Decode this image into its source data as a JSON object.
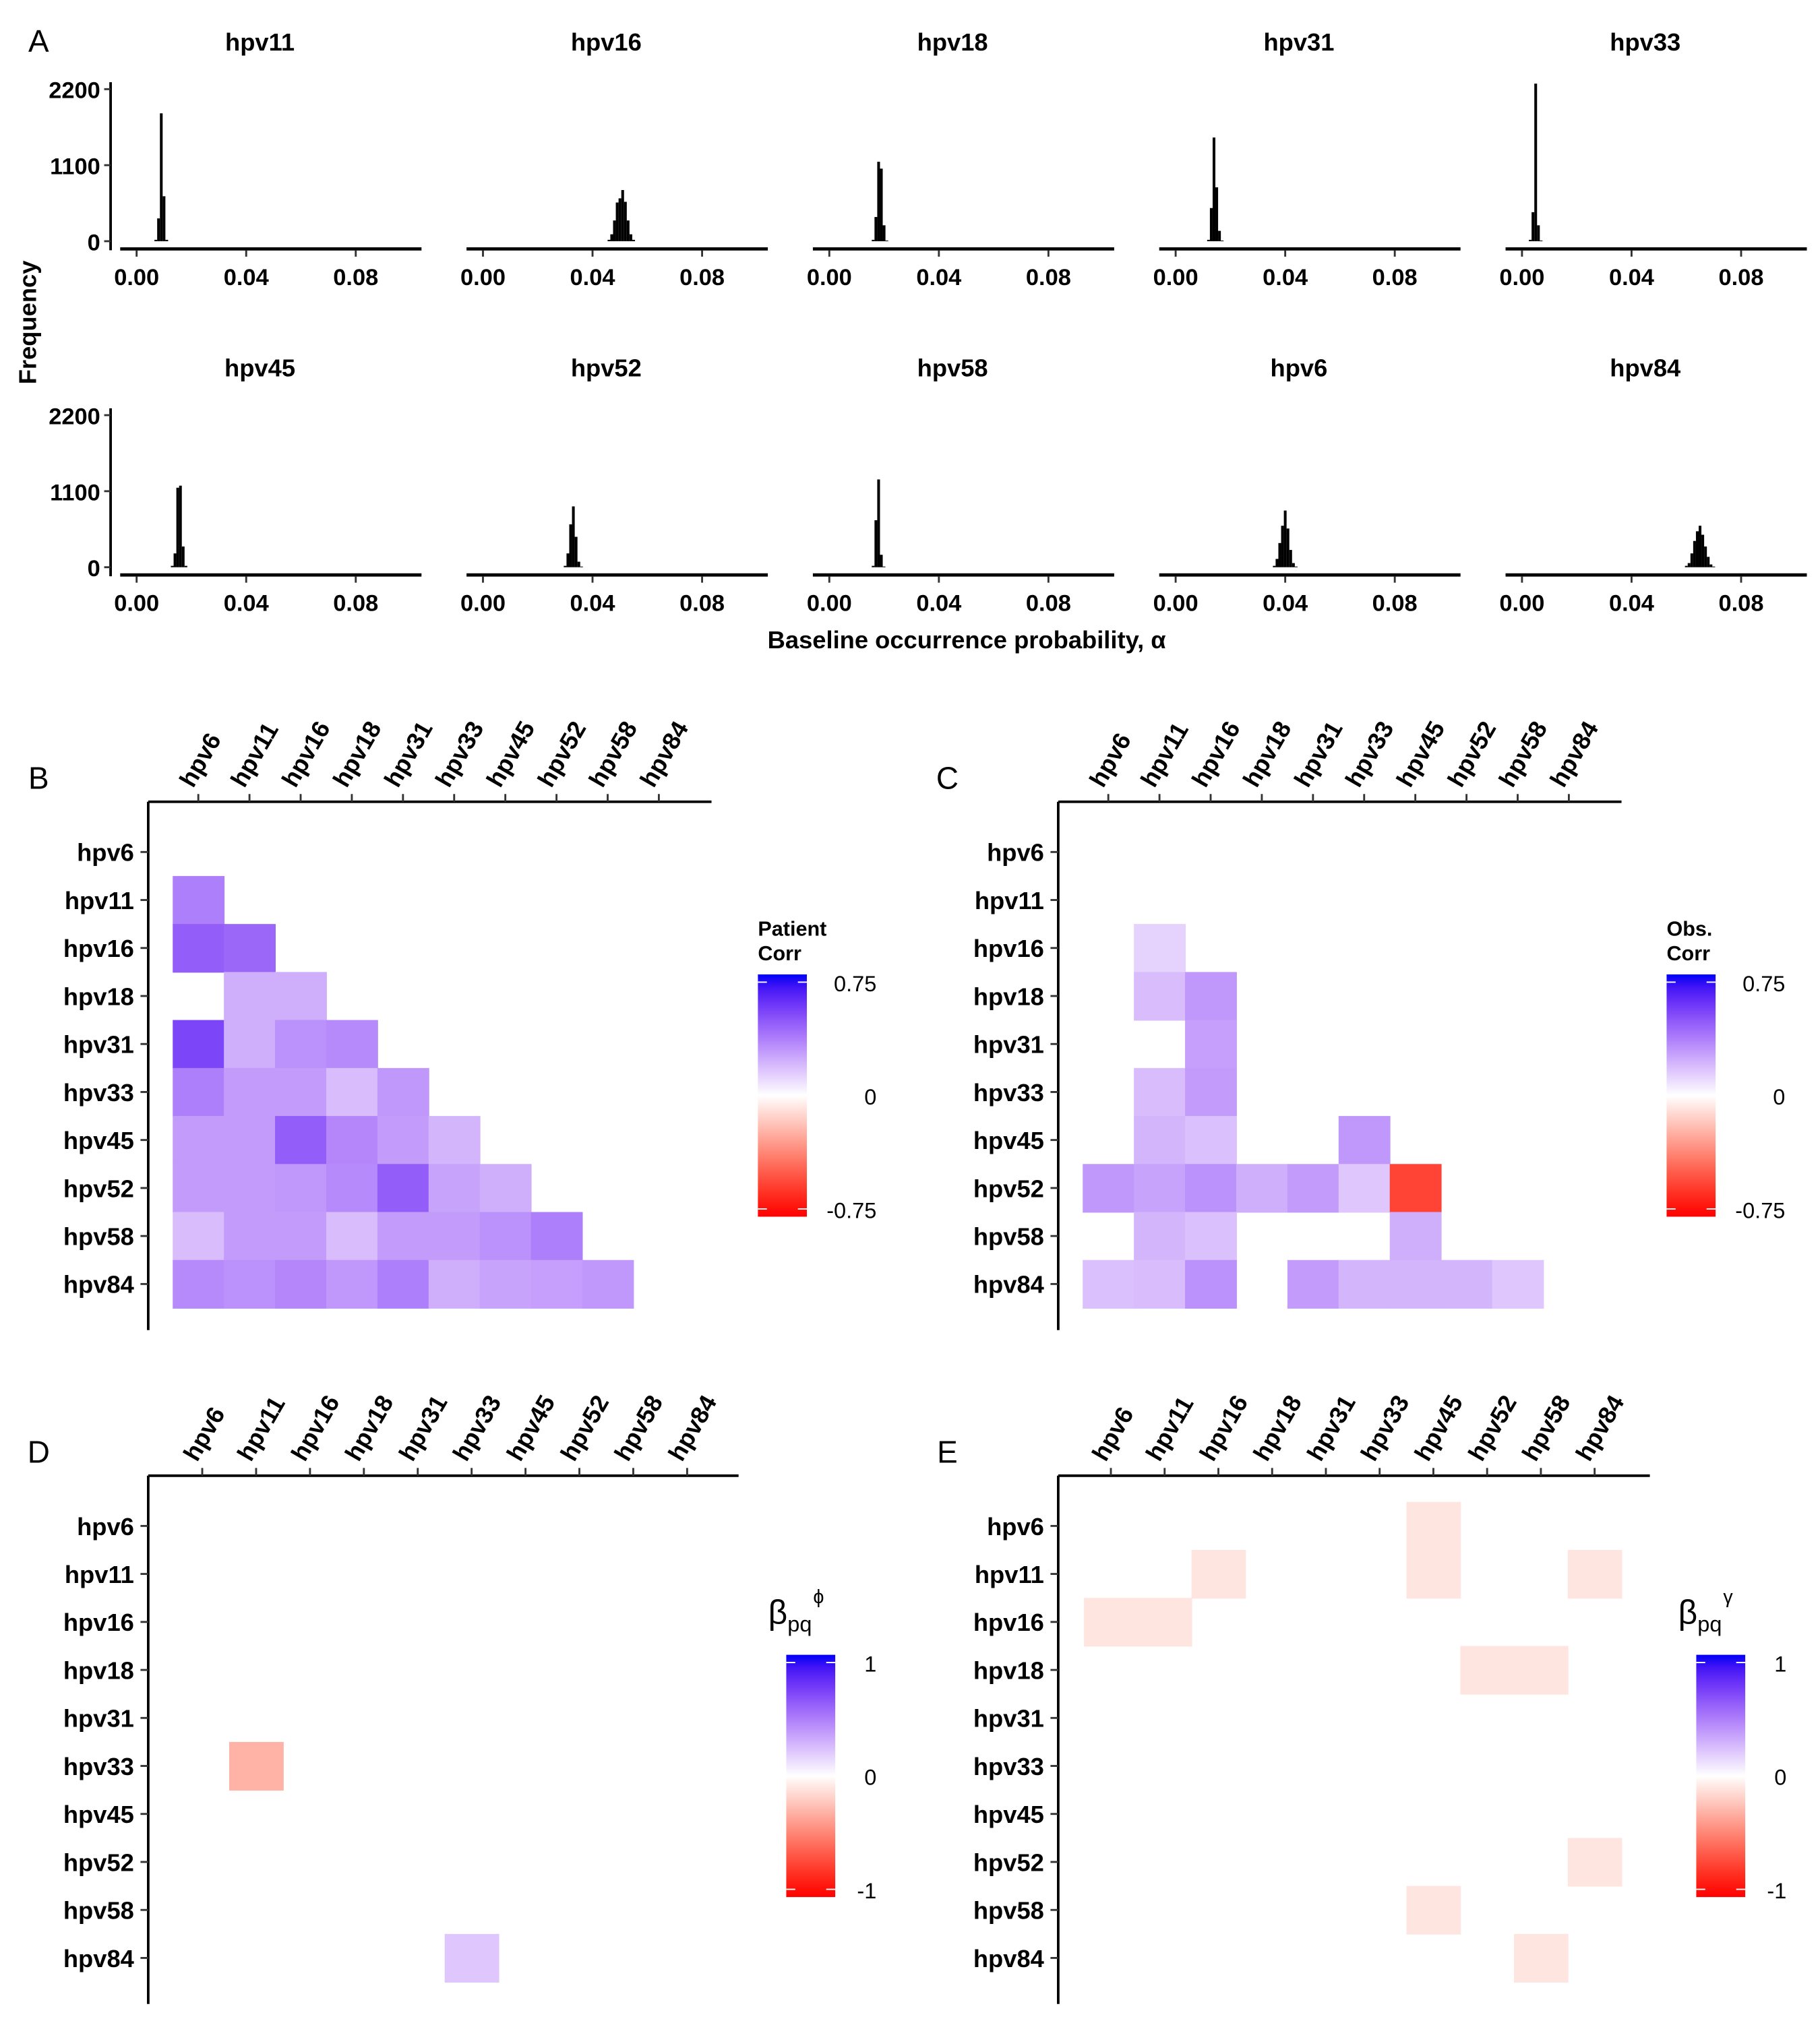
{
  "chart_data": [
    {
      "panel": "A",
      "type": "bar",
      "subtype": "histogram-facets",
      "ylabel": "Frequency",
      "xlabel": "Baseline occurrence probability,  α",
      "x_ticks": [
        "0.00",
        "0.04",
        "0.08"
      ],
      "y_ticks": [
        "0",
        "1100",
        "2200"
      ],
      "xlim": [
        -0.005,
        0.1
      ],
      "ylim": [
        0,
        2300
      ],
      "bin_width": 0.001,
      "bar_color": "#000000",
      "facets": [
        {
          "title": "hpv11",
          "bins": [
            [
              0.007,
              20
            ],
            [
              0.008,
              330
            ],
            [
              0.009,
              1850
            ],
            [
              0.01,
              650
            ],
            [
              0.011,
              20
            ]
          ]
        },
        {
          "title": "hpv16",
          "bins": [
            [
              0.046,
              20
            ],
            [
              0.047,
              100
            ],
            [
              0.048,
              300
            ],
            [
              0.049,
              560
            ],
            [
              0.05,
              620
            ],
            [
              0.051,
              740
            ],
            [
              0.052,
              570
            ],
            [
              0.053,
              300
            ],
            [
              0.054,
              100
            ],
            [
              0.055,
              20
            ]
          ]
        },
        {
          "title": "hpv18",
          "bins": [
            [
              0.016,
              20
            ],
            [
              0.017,
              350
            ],
            [
              0.018,
              1150
            ],
            [
              0.019,
              1050
            ],
            [
              0.02,
              230
            ],
            [
              0.021,
              10
            ]
          ]
        },
        {
          "title": "hpv31",
          "bins": [
            [
              0.012,
              20
            ],
            [
              0.013,
              480
            ],
            [
              0.014,
              1500
            ],
            [
              0.015,
              780
            ],
            [
              0.016,
              150
            ],
            [
              0.017,
              10
            ]
          ]
        },
        {
          "title": "hpv33",
          "bins": [
            [
              0.003,
              20
            ],
            [
              0.004,
              420
            ],
            [
              0.005,
              2280
            ],
            [
              0.006,
              230
            ],
            [
              0.007,
              10
            ]
          ]
        },
        {
          "title": "hpv45",
          "bins": [
            [
              0.013,
              20
            ],
            [
              0.014,
              200
            ],
            [
              0.015,
              1150
            ],
            [
              0.016,
              1180
            ],
            [
              0.017,
              300
            ],
            [
              0.018,
              20
            ]
          ]
        },
        {
          "title": "hpv52",
          "bins": [
            [
              0.03,
              20
            ],
            [
              0.031,
              200
            ],
            [
              0.032,
              620
            ],
            [
              0.033,
              880
            ],
            [
              0.034,
              440
            ],
            [
              0.035,
              80
            ],
            [
              0.036,
              10
            ]
          ]
        },
        {
          "title": "hpv58",
          "bins": [
            [
              0.016,
              20
            ],
            [
              0.017,
              680
            ],
            [
              0.018,
              1270
            ],
            [
              0.019,
              180
            ],
            [
              0.02,
              10
            ]
          ]
        },
        {
          "title": "hpv6",
          "bins": [
            [
              0.036,
              20
            ],
            [
              0.037,
              120
            ],
            [
              0.038,
              350
            ],
            [
              0.039,
              600
            ],
            [
              0.04,
              820
            ],
            [
              0.041,
              560
            ],
            [
              0.042,
              250
            ],
            [
              0.043,
              60
            ],
            [
              0.044,
              10
            ]
          ]
        },
        {
          "title": "hpv84",
          "bins": [
            [
              0.06,
              20
            ],
            [
              0.061,
              60
            ],
            [
              0.062,
              200
            ],
            [
              0.063,
              380
            ],
            [
              0.064,
              520
            ],
            [
              0.065,
              600
            ],
            [
              0.066,
              470
            ],
            [
              0.067,
              300
            ],
            [
              0.068,
              150
            ],
            [
              0.069,
              40
            ],
            [
              0.07,
              10
            ]
          ]
        }
      ]
    },
    {
      "panel": "B",
      "type": "heatmap",
      "legend_title": [
        "Patient",
        "Corr"
      ],
      "legend_ticks": [
        "0.75",
        "0",
        "-0.75"
      ],
      "limits": [
        -0.75,
        0.75
      ],
      "low_color": "#ff0000",
      "mid_color": "#ffffff",
      "high_color": "#0000ff",
      "labels": [
        "hpv6",
        "hpv11",
        "hpv16",
        "hpv18",
        "hpv31",
        "hpv33",
        "hpv45",
        "hpv52",
        "hpv58",
        "hpv84"
      ],
      "values": [
        [],
        [
          0.35
        ],
        [
          0.45,
          0.42
        ],
        [
          null,
          0.22,
          0.22
        ],
        [
          0.52,
          0.22,
          0.3,
          0.32
        ],
        [
          0.35,
          0.27,
          0.27,
          0.18,
          0.28
        ],
        [
          0.27,
          0.27,
          0.45,
          0.33,
          0.27,
          0.2
        ],
        [
          0.27,
          0.27,
          0.28,
          0.32,
          0.45,
          0.25,
          0.22
        ],
        [
          0.18,
          0.27,
          0.27,
          0.18,
          0.27,
          0.27,
          0.3,
          0.35
        ],
        [
          0.32,
          0.3,
          0.33,
          0.28,
          0.35,
          0.22,
          0.25,
          0.26,
          0.28
        ]
      ]
    },
    {
      "panel": "C",
      "type": "heatmap",
      "legend_title": [
        "Obs.",
        "Corr"
      ],
      "legend_ticks": [
        "0.75",
        "0",
        "-0.75"
      ],
      "limits": [
        -0.75,
        0.75
      ],
      "low_color": "#ff0000",
      "mid_color": "#ffffff",
      "high_color": "#0000ff",
      "labels": [
        "hpv6",
        "hpv11",
        "hpv16",
        "hpv18",
        "hpv31",
        "hpv33",
        "hpv45",
        "hpv52",
        "hpv58",
        "hpv84"
      ],
      "values": [
        [],
        [],
        [
          null,
          0.12
        ],
        [
          null,
          0.18,
          0.28
        ],
        [
          null,
          null,
          0.26
        ],
        [
          null,
          0.18,
          0.27
        ],
        [
          null,
          0.2,
          0.17,
          null,
          null,
          0.28
        ],
        [
          0.28,
          0.25,
          0.3,
          0.22,
          0.27,
          0.15,
          -0.55
        ],
        [
          null,
          0.2,
          0.17,
          null,
          null,
          null,
          0.22
        ],
        [
          0.17,
          0.18,
          0.3,
          null,
          0.27,
          0.2,
          0.2,
          0.2,
          0.15
        ]
      ]
    },
    {
      "panel": "D",
      "type": "heatmap",
      "legend_title_symbol": "β",
      "legend_title_sup": "ϕ",
      "legend_title_sub": "pq",
      "legend_ticks": [
        "1",
        "0",
        "-1"
      ],
      "limits": [
        -1,
        1
      ],
      "low_color": "#ff0000",
      "mid_color": "#ffffff",
      "high_color": "#0000ff",
      "labels": [
        "hpv6",
        "hpv11",
        "hpv16",
        "hpv18",
        "hpv31",
        "hpv33",
        "hpv45",
        "hpv52",
        "hpv58",
        "hpv84"
      ],
      "cells": [
        {
          "row": "hpv33",
          "col": "hpv11",
          "value": -0.3
        },
        {
          "row": "hpv84",
          "col": "hpv33",
          "value": 0.2
        }
      ]
    },
    {
      "panel": "E",
      "type": "heatmap",
      "legend_title_symbol": "β",
      "legend_title_sup": "γ",
      "legend_title_sub": "pq",
      "legend_ticks": [
        "1",
        "0",
        "-1"
      ],
      "limits": [
        -1,
        1
      ],
      "low_color": "#ff0000",
      "mid_color": "#ffffff",
      "high_color": "#0000ff",
      "labels": [
        "hpv6",
        "hpv11",
        "hpv16",
        "hpv18",
        "hpv31",
        "hpv33",
        "hpv45",
        "hpv52",
        "hpv58",
        "hpv84"
      ],
      "cells": [
        {
          "row": "hpv6",
          "col": "hpv45",
          "value": -0.1
        },
        {
          "row": "hpv11",
          "col": "hpv16",
          "value": -0.1
        },
        {
          "row": "hpv11",
          "col": "hpv45",
          "value": -0.1
        },
        {
          "row": "hpv11",
          "col": "hpv84",
          "value": -0.1
        },
        {
          "row": "hpv16",
          "col": "hpv6",
          "value": -0.1
        },
        {
          "row": "hpv16",
          "col": "hpv11",
          "value": -0.1
        },
        {
          "row": "hpv18",
          "col": "hpv52",
          "value": -0.1
        },
        {
          "row": "hpv18",
          "col": "hpv58",
          "value": -0.1
        },
        {
          "row": "hpv52",
          "col": "hpv84",
          "value": -0.1
        },
        {
          "row": "hpv58",
          "col": "hpv45",
          "value": -0.1
        },
        {
          "row": "hpv84",
          "col": "hpv58",
          "value": -0.1
        }
      ]
    }
  ]
}
